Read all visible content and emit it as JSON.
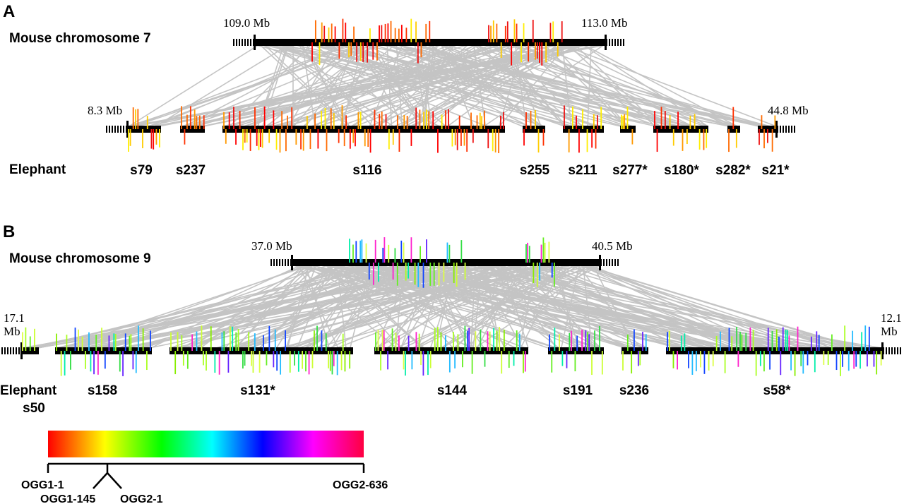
{
  "panels": [
    {
      "label": "A",
      "top_species": "Mouse chromosome 7",
      "top_start": "109.0 Mb",
      "top_end": "113.0 Mb",
      "bottom_start": "8.3 Mb",
      "bottom_end": "44.8 Mb",
      "bottom_species": "Elephant",
      "scaffolds": [
        "s79",
        "s237",
        "s116",
        "s255",
        "s211",
        "s277*",
        "s180*",
        "s282*",
        "s21*"
      ]
    },
    {
      "label": "B",
      "top_species": "Mouse chromosome 9",
      "top_start": "37.0 Mb",
      "top_end": "40.5 Mb",
      "bottom_start": [
        "17.1",
        "Mb"
      ],
      "bottom_end": [
        "12.1",
        "Mb"
      ],
      "bottom_species": "Elephant",
      "scaffolds": [
        "s50",
        "s158",
        "s131*",
        "s144",
        "s191",
        "s236",
        "s58*"
      ]
    }
  ],
  "legend": {
    "labels": [
      "OGG1-1",
      "OGG1-145",
      "OGG2-1",
      "OGG2-636"
    ]
  }
}
